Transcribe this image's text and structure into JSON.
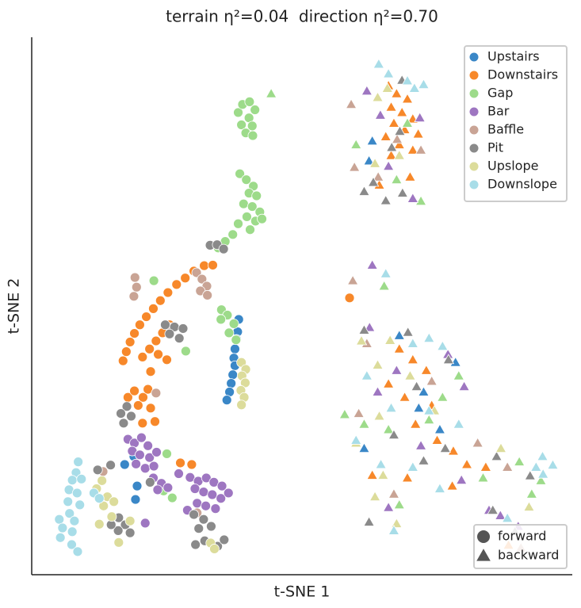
{
  "chart_data": {
    "type": "scatter",
    "title": "terrain η²=0.04  direction η²=0.70",
    "x_label": "t-SNE 1",
    "y_label": "t-SNE 2",
    "xlim": [
      0,
      100
    ],
    "ylim": [
      0,
      100
    ],
    "legend": "upper right",
    "direction_legend": {
      "position": "lower right",
      "items": [
        {
          "name": "forward",
          "marker": "circle"
        },
        {
          "name": "backward",
          "marker": "triangle"
        }
      ]
    },
    "series": [
      {
        "name": "Upstairs",
        "color": "#3a87c7",
        "groups": [
          {
            "x": [
              38.3,
              38.1,
              37.9,
              37.6,
              37.4,
              37.6,
              37.2,
              36.9,
              36.6,
              36.1,
              18.9,
              19.5,
              19.2,
              17.2
            ],
            "y": [
              47.5,
              45.2,
              43.8,
              42.0,
              40.3,
              38.9,
              37.2,
              35.6,
              34.0,
              32.5,
              22.0,
              16.5,
              14.0,
              20.5
            ]
          },
          {
            "x": [
              63,
              62.4,
              68,
              72.5,
              71.6,
              78.4,
              61.5,
              75.5
            ],
            "y": [
              80.7,
              77,
              44.5,
              34,
              31,
              39.5,
              23.5,
              27
            ]
          }
        ]
      },
      {
        "name": "Downstairs",
        "color": "#f7882a",
        "groups": [
          {
            "x": [
              16.9,
              17.5,
              18.2,
              19.0,
              20.0,
              21.2,
              22.5,
              23.8,
              25.2,
              26.8,
              28.4,
              30.0,
              31.9,
              33.5,
              20.5,
              21.8,
              23.0,
              24.2,
              25.5,
              23.4,
              25.0,
              22.0,
              17.8,
              19.0,
              20.6,
              21.5,
              19.7,
              22.0,
              20.5,
              22.8,
              27.5,
              29.6,
              58.8
            ],
            "y": [
              39.8,
              41.5,
              43.3,
              44.9,
              46.5,
              48.0,
              49.5,
              51.0,
              52.5,
              54.0,
              55.2,
              56.5,
              57.5,
              57.6,
              40.5,
              42.0,
              43.5,
              45.0,
              46.5,
              41.0,
              40.0,
              37.8,
              33.0,
              34.2,
              33.0,
              34.5,
              31.5,
              31.0,
              28.2,
              28.5,
              20.8,
              20.5,
              51.5
            ]
          },
          {
            "x": [
              66,
              67.5,
              69.5,
              66.5,
              68.5,
              70.5,
              67,
              69,
              71.5,
              65.5,
              68,
              70.5,
              66.5,
              64.3,
              70,
              68,
              70.5,
              73,
              66,
              69,
              74,
              71,
              75,
              78,
              80.5,
              84,
              69.5,
              63,
              77.8,
              88.2
            ],
            "y": [
              91,
              89.5,
              88.5,
              87,
              86,
              84.8,
              84,
              82.8,
              82,
              81.5,
              80,
              79,
              78,
              72.5,
              74,
              42,
              40,
              38,
              35.5,
              33,
              31.5,
              28,
              25,
              23,
              20.5,
              20,
              18,
              18.5,
              16.5,
              5.5
            ]
          }
        ]
      },
      {
        "name": "Gap",
        "color": "#9ddb8a",
        "groups": [
          {
            "x": [
              38.2,
              39,
              40.3,
              41.3,
              40.2,
              38.8,
              40.8,
              39.6,
              40.9,
              38.5,
              39.7,
              41.0,
              40.2,
              41.6,
              39.2,
              40.8,
              42.2,
              39.8,
              41.4,
              38.2,
              40.4,
              42.6,
              37.2,
              35.8,
              34.5,
              35.1,
              36.2,
              37.4,
              36.5,
              37.8,
              35.0,
              22.6,
              28.5,
              25.0,
              24.4,
              26.0
            ],
            "y": [
              86,
              87.5,
              88,
              86.5,
              85,
              83.7,
              83.5,
              82.2,
              81.7,
              74.6,
              73.5,
              72.3,
              71,
              70.5,
              69,
              68.5,
              67.5,
              66.6,
              65.8,
              65.3,
              64.2,
              66.2,
              63.3,
              62.0,
              60.8,
              49.3,
              48.3,
              46.7,
              45.0,
              43.7,
              47.5,
              54.7,
              41.6,
              22.5,
              15.6,
              14.3
            ]
          },
          {
            "x": [
              44.3,
              69.5,
              67.5,
              72,
              60,
              65.2,
              61.5,
              66,
              76,
              79,
              83.5,
              90.2,
              92.5,
              68,
              73.5,
              57.9,
              94.2
            ],
            "y": [
              89.5,
              84,
              73.5,
              69.5,
              80,
              53.7,
              28,
              27,
              33,
              37,
              18,
              21,
              15,
              13,
              28.8,
              29.8,
              17.5
            ]
          }
        ]
      },
      {
        "name": "Bar",
        "color": "#9e76c1",
        "groups": [
          {
            "x": [
              17.8,
              19.0,
              20.3,
              21.5,
              18.6,
              20.0,
              21.8,
              23.1,
              19.3,
              21.0,
              22.6,
              22.5,
              24.0,
              23.3,
              25.2,
              29.3,
              30.8,
              32.3,
              33.7,
              35.2,
              30.2,
              31.8,
              33.4,
              35.0,
              36.4,
              30.6,
              32.2,
              34.0,
              28.8,
              27.2,
              21.0
            ],
            "y": [
              25.2,
              24.5,
              25.5,
              24.0,
              23.0,
              22.3,
              21.8,
              22.8,
              20.6,
              19.8,
              20.2,
              18.0,
              17.0,
              15.8,
              16.2,
              18.1,
              17.4,
              18.0,
              17.2,
              16.5,
              16.0,
              15.4,
              14.9,
              14.2,
              15.2,
              13.3,
              12.8,
              12.3,
              12.0,
              18.8,
              9.6
            ]
          },
          {
            "x": [
              62,
              64.5,
              71.8,
              66,
              70.5,
              63,
              62.5,
              67.5,
              77,
              64,
              80,
              72,
              79.5,
              84.6,
              86.7,
              90,
              66
            ],
            "y": [
              90,
              85.5,
              85,
              76,
              70,
              57.6,
              46,
              38,
              41,
              34,
              35,
              24,
              17.6,
              12,
              11,
              9,
              12.5
            ]
          }
        ]
      },
      {
        "name": "Baffle",
        "color": "#c9a495",
        "groups": [
          {
            "x": [
              19.1,
              19.4,
              18.9,
              30.5,
              31.5,
              32.4,
              31.2,
              32.5,
              25.7,
              23.0,
              13.2,
              30.6
            ],
            "y": [
              55.3,
              53.5,
              51.8,
              56.2,
              55.0,
              53.7,
              52.8,
              52,
              46.0,
              33.8,
              19.2,
              11.5
            ]
          },
          {
            "x": [
              59.4,
              59.7,
              59.1,
              64.1,
              72,
              67.6,
              62,
              74,
              60.5,
              82.5,
              67,
              88,
              90.5
            ],
            "y": [
              54.7,
              75.8,
              87.5,
              74,
              79,
              81,
              43,
              36,
              30,
              24.5,
              15,
              20,
              5
            ]
          }
        ]
      },
      {
        "name": "Pit",
        "color": "#8a8a8a",
        "groups": [
          {
            "x": [
              33.0,
              34.3,
              35.5,
              24.7,
              26.4,
              28.0,
              25.5,
              27.3,
              17.6,
              16.5,
              18.4,
              17.0,
              16.1,
              17.3,
              16.0,
              18.2,
              14.7,
              30.0,
              31.8,
              30.9,
              33.2,
              32.0,
              30.3,
              34.4,
              35.6,
              21.9,
              12.2,
              14.6
            ],
            "y": [
              61.3,
              61.4,
              60.6,
              46.5,
              46.1,
              45.8,
              44.8,
              44.0,
              31.3,
              30.0,
              29.5,
              28.2,
              10.6,
              9.3,
              8.2,
              7.8,
              9.3,
              11.2,
              10.3,
              8.6,
              9.0,
              6.3,
              5.6,
              5.3,
              6.5,
              17.2,
              19.5,
              20.4
            ]
          },
          {
            "x": [
              68.5,
              66.6,
              63.2,
              61.5,
              68.6,
              65.5,
              68.1,
              61.5,
              69.6,
              77.1,
              71.2,
              67,
              76.5,
              72.5,
              86,
              85.3,
              62.4,
              89.4,
              92.2
            ],
            "y": [
              92,
              79.5,
              73.0,
              71.3,
              71.0,
              69.6,
              82.5,
              45.5,
              45.1,
              40.0,
              35.0,
              26,
              23.5,
              21.2,
              22,
              12.0,
              9.8,
              8.0,
              18.4
            ]
          }
        ]
      },
      {
        "name": "Upslope",
        "color": "#dcdc9b",
        "groups": [
          {
            "x": [
              38.8,
              39.6,
              38.9,
              39.5,
              38.7,
              39.3,
              38.8,
              13.0,
              12.0,
              14.0,
              13.3,
              15.2,
              14.8,
              12.5,
              16.1,
              18.2,
              33.1,
              33.8
            ],
            "y": [
              39.5,
              38.2,
              37.0,
              35.7,
              34.3,
              33.0,
              31.6,
              17.5,
              16.0,
              14.5,
              12.8,
              13.6,
              10.8,
              9.4,
              6.0,
              10.0,
              5.9,
              4.8
            ]
          },
          {
            "x": [
              64,
              65.8,
              68,
              63.5,
              61,
              66.3,
              64,
              70,
              64.3,
              60,
              74.5,
              65,
              63.5,
              67.5,
              86.8,
              92
            ],
            "y": [
              88.8,
              90.5,
              78,
              76.5,
              43.5,
              43.6,
              39,
              37,
              29.5,
              24.5,
              30.5,
              18.5,
              14.5,
              9.5,
              23.5,
              12.6
            ]
          }
        ]
      },
      {
        "name": "Downslope",
        "color": "#a8dde8",
        "groups": [
          {
            "x": [
              8.6,
              8.2,
              7.5,
              9.2,
              6.9,
              8.4,
              6.7,
              8.9,
              7.0,
              5.1,
              7.9,
              5.7,
              7.5,
              5.3,
              7.4,
              8.5,
              11.5,
              12.5
            ],
            "y": [
              21.0,
              19.0,
              17.6,
              17.8,
              15.8,
              15.2,
              13.6,
              13.0,
              11.4,
              10.3,
              10.0,
              8.7,
              8.0,
              6.9,
              5.6,
              4.3,
              15.2,
              14.2
            ]
          },
          {
            "x": [
              64.2,
              66,
              69.5,
              70.8,
              72.5,
              65.5,
              70.5,
              73.5,
              76,
              62,
              66.5,
              73.5,
              79,
              60,
              64.6,
              70.5,
              75.5,
              67,
              94.5,
              93.3,
              96.4,
              94.6,
              88
            ],
            "y": [
              95,
              93.2,
              91.9,
              90.5,
              91.2,
              56,
              43,
              44,
              42.5,
              37,
              31,
              30.5,
              28,
              25,
              20.5,
              20,
              16,
              8.2,
              22,
              20,
              20.4,
              18.7,
              10.5
            ]
          }
        ]
      }
    ]
  }
}
